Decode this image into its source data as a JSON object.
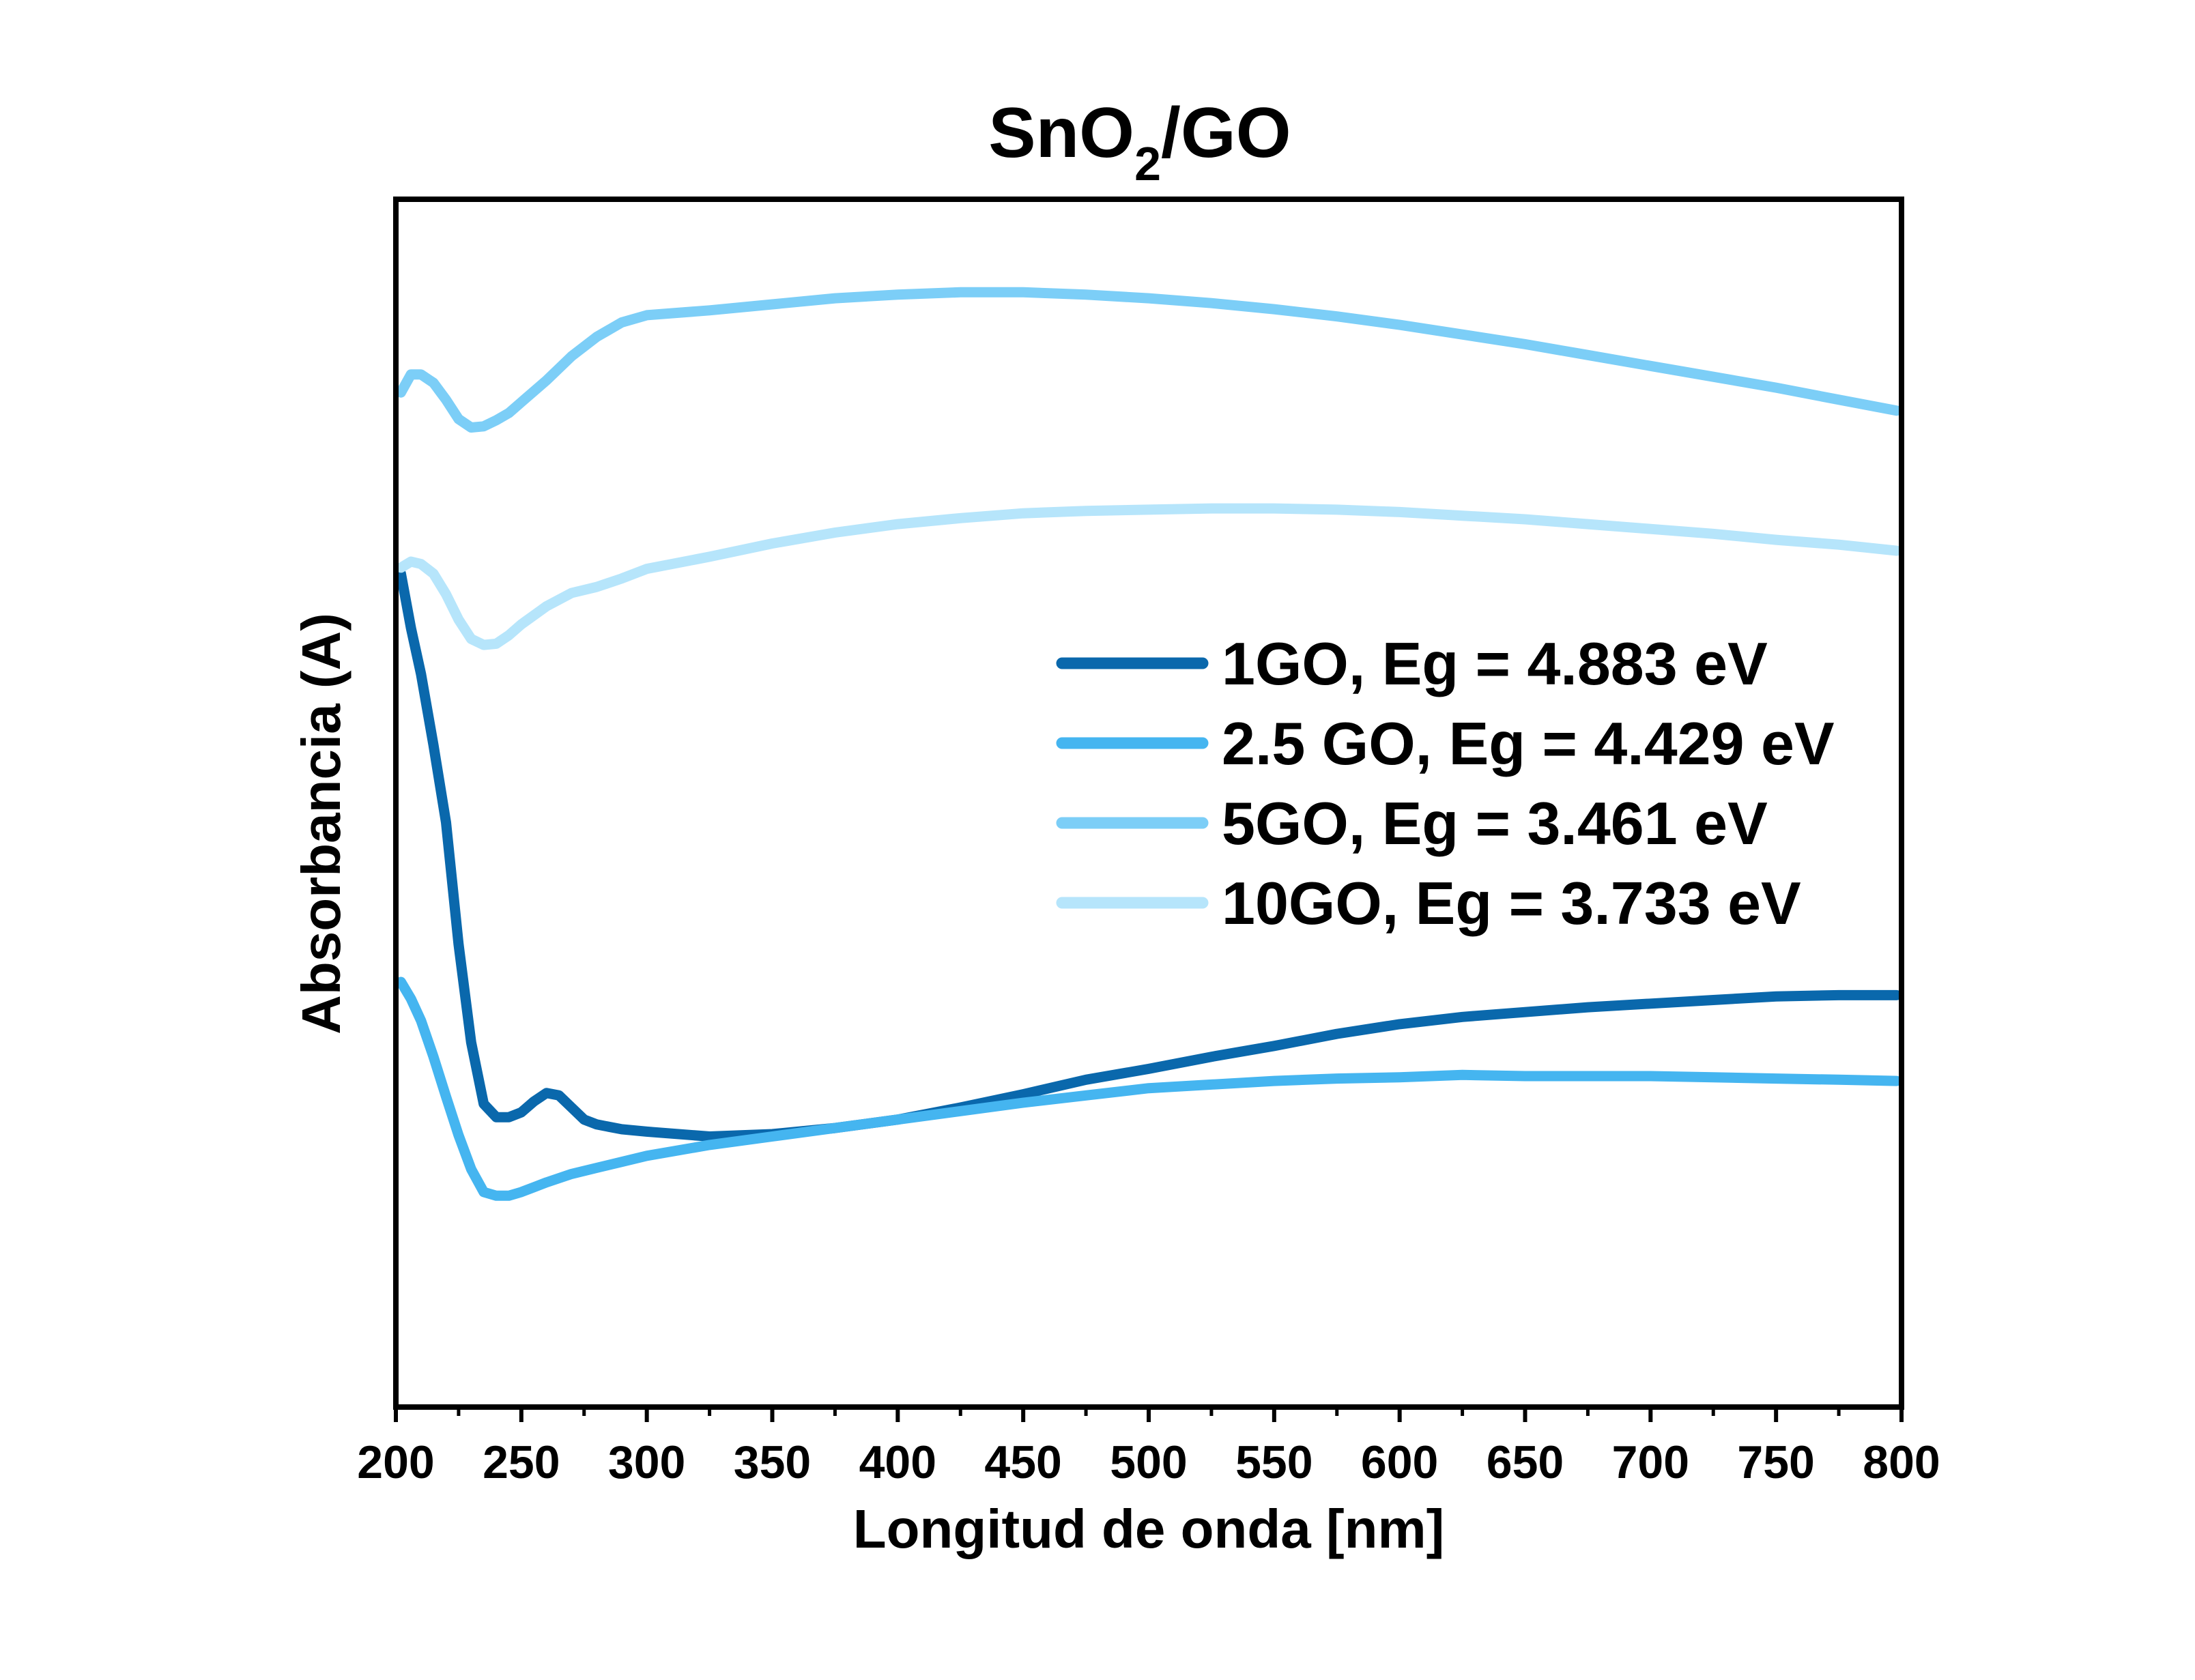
{
  "chart_data": {
    "type": "line",
    "title": {
      "main": "SnO",
      "sub": "2",
      "suffix": "/GO"
    },
    "xlabel": "Longitud de onda [nm]",
    "ylabel": "Absorbancia (A)",
    "xlim": [
      200,
      800
    ],
    "ylim": [
      0,
      100
    ],
    "y_ticks_shown": false,
    "x_ticks": [
      "200",
      "250",
      "300",
      "350",
      "400",
      "450",
      "500",
      "550",
      "600",
      "650",
      "700",
      "750",
      "800"
    ],
    "legend_position": "right-middle",
    "grid": false,
    "series": [
      {
        "name": "1GO, Eg = 4.883 eV",
        "color": "#0a68ac",
        "x": [
          202,
          206,
          210,
          215,
          220,
          225,
          230,
          235,
          240,
          245,
          250,
          255,
          260,
          265,
          270,
          275,
          280,
          290,
          300,
          325,
          350,
          375,
          400,
          425,
          450,
          475,
          500,
          525,
          550,
          575,
          600,
          625,
          650,
          675,
          700,
          725,
          750,
          775,
          798
        ],
        "y": [
          69,
          64.5,
          60.7,
          54.8,
          48.4,
          38.3,
          30.2,
          25.1,
          24,
          24,
          24.4,
          25.3,
          26,
          25.8,
          24.8,
          23.8,
          23.4,
          23,
          22.8,
          22.4,
          22.6,
          23.1,
          23.8,
          24.8,
          25.9,
          27.1,
          28,
          29,
          29.9,
          30.9,
          31.7,
          32.3,
          32.7,
          33.1,
          33.4,
          33.7,
          34,
          34.1,
          34.1
        ]
      },
      {
        "name": "2.5 GO, Eg = 4.429 eV",
        "color": "#45b5f0",
        "x": [
          202,
          206,
          210,
          215,
          220,
          225,
          230,
          235,
          240,
          245,
          250,
          255,
          260,
          270,
          280,
          290,
          300,
          325,
          350,
          375,
          400,
          425,
          450,
          475,
          500,
          525,
          550,
          575,
          600,
          625,
          650,
          675,
          700,
          725,
          750,
          775,
          798
        ],
        "y": [
          35.2,
          33.8,
          32,
          29,
          25.7,
          22.5,
          19.7,
          17.8,
          17.5,
          17.5,
          17.8,
          18.2,
          18.6,
          19.3,
          19.8,
          20.3,
          20.8,
          21.7,
          22.4,
          23.1,
          23.8,
          24.5,
          25.2,
          25.8,
          26.4,
          26.7,
          27,
          27.2,
          27.3,
          27.5,
          27.4,
          27.4,
          27.4,
          27.3,
          27.2,
          27.1,
          27
        ]
      },
      {
        "name": "5GO, Eg = 3.461 eV",
        "color": "#7ccef7",
        "x": [
          202,
          206,
          210,
          215,
          220,
          225,
          230,
          235,
          240,
          245,
          250,
          260,
          270,
          280,
          290,
          300,
          325,
          350,
          375,
          400,
          425,
          450,
          475,
          500,
          525,
          550,
          575,
          600,
          625,
          650,
          675,
          700,
          725,
          750,
          775,
          798
        ],
        "y": [
          84,
          85.5,
          85.5,
          84.8,
          83.4,
          81.8,
          81.1,
          81.2,
          81.7,
          82.3,
          83.2,
          85,
          87,
          88.6,
          89.8,
          90.4,
          90.8,
          91.3,
          91.8,
          92.1,
          92.3,
          92.3,
          92.1,
          91.8,
          91.4,
          90.9,
          90.3,
          89.6,
          88.8,
          88,
          87.1,
          86.2,
          85.3,
          84.4,
          83.4,
          82.5
        ]
      },
      {
        "name": "10GO, Eg = 3.733 eV",
        "color": "#b6e5fb",
        "x": [
          202,
          206,
          210,
          215,
          220,
          225,
          230,
          235,
          240,
          245,
          250,
          260,
          270,
          280,
          290,
          300,
          325,
          350,
          375,
          400,
          425,
          450,
          475,
          500,
          525,
          550,
          575,
          600,
          625,
          650,
          675,
          700,
          725,
          750,
          775,
          798
        ],
        "y": [
          69.5,
          70,
          69.8,
          69,
          67.3,
          65.2,
          63.6,
          63.1,
          63.2,
          63.9,
          64.8,
          66.3,
          67.4,
          67.9,
          68.6,
          69.4,
          70.4,
          71.5,
          72.4,
          73.1,
          73.6,
          74,
          74.2,
          74.3,
          74.4,
          74.4,
          74.3,
          74.1,
          73.8,
          73.5,
          73.1,
          72.7,
          72.3,
          71.8,
          71.4,
          70.9
        ]
      }
    ]
  }
}
